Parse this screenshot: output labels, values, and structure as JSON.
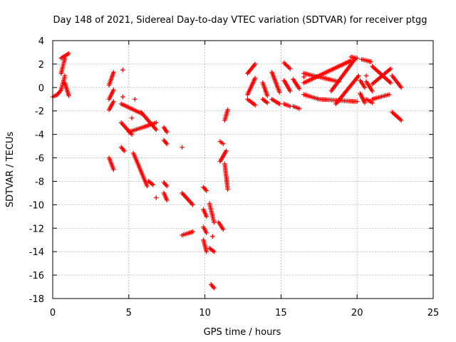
{
  "chart_data": {
    "type": "scatter",
    "title": "Day 148 of 2021, Sidereal Day-to-day VTEC variation (SDTVAR) for receiver ptgg",
    "xlabel": "GPS time / hours",
    "ylabel": "SDTVAR / TECUs",
    "xlim": [
      0,
      25
    ],
    "ylim": [
      -18,
      4
    ],
    "xticks": [
      "0",
      "5",
      "10",
      "15",
      "20",
      "25"
    ],
    "yticks": [
      "4",
      "2",
      "0",
      "-2",
      "-4",
      "-6",
      "-8",
      "-10",
      "-12",
      "-14",
      "-16",
      "-18"
    ],
    "grid": true,
    "marker": "+",
    "color": "#ff0000",
    "segments": [
      {
        "x": [
          0.0,
          0.3
        ],
        "y": [
          -0.8,
          -0.6
        ]
      },
      {
        "x": [
          0.3,
          0.5
        ],
        "y": [
          -0.6,
          -0.3
        ]
      },
      {
        "x": [
          0.55,
          1.05
        ],
        "y": [
          2.5,
          2.9
        ]
      },
      {
        "x": [
          0.55,
          0.8
        ],
        "y": [
          1.2,
          2.5
        ]
      },
      {
        "x": [
          0.55,
          0.8
        ],
        "y": [
          -0.2,
          1.0
        ]
      },
      {
        "x": [
          0.8,
          1.05
        ],
        "y": [
          0.4,
          -0.7
        ]
      },
      {
        "x": [
          3.7,
          4.0
        ],
        "y": [
          0.2,
          1.3
        ]
      },
      {
        "x": [
          3.7,
          4.0
        ],
        "y": [
          -1.0,
          -0.2
        ]
      },
      {
        "x": [
          3.7,
          4.0
        ],
        "y": [
          -1.9,
          -1.2
        ]
      },
      {
        "x": [
          3.7,
          4.0
        ],
        "y": [
          -6.0,
          -7.0
        ]
      },
      {
        "x": [
          4.5,
          5.8
        ],
        "y": [
          -1.4,
          -2.2
        ]
      },
      {
        "x": [
          4.5,
          5.2
        ],
        "y": [
          -3.0,
          -4.0
        ]
      },
      {
        "x": [
          5.0,
          6.8
        ],
        "y": [
          -3.8,
          -3.0
        ]
      },
      {
        "x": [
          5.8,
          6.8
        ],
        "y": [
          -2.1,
          -3.6
        ]
      },
      {
        "x": [
          4.5,
          4.7
        ],
        "y": [
          -5.1,
          -5.4
        ]
      },
      {
        "x": [
          5.3,
          6.2
        ],
        "y": [
          -5.6,
          -8.4
        ]
      },
      {
        "x": [
          6.3,
          6.6
        ],
        "y": [
          -8.0,
          -8.3
        ]
      },
      {
        "x": [
          7.3,
          7.5
        ],
        "y": [
          -3.4,
          -3.8
        ]
      },
      {
        "x": [
          7.3,
          7.5
        ],
        "y": [
          -4.5,
          -4.8
        ]
      },
      {
        "x": [
          7.3,
          7.5
        ],
        "y": [
          -8.1,
          -8.4
        ]
      },
      {
        "x": [
          7.3,
          7.5
        ],
        "y": [
          -9.0,
          -9.6
        ]
      },
      {
        "x": [
          8.5,
          9.2
        ],
        "y": [
          -9.0,
          -10.0
        ]
      },
      {
        "x": [
          8.5,
          9.2
        ],
        "y": [
          -12.6,
          -12.3
        ]
      },
      {
        "x": [
          9.9,
          10.1
        ],
        "y": [
          -8.5,
          -8.8
        ]
      },
      {
        "x": [
          9.9,
          10.1
        ],
        "y": [
          -10.4,
          -11.0
        ]
      },
      {
        "x": [
          9.9,
          10.1
        ],
        "y": [
          -11.9,
          -12.4
        ]
      },
      {
        "x": [
          9.9,
          10.1
        ],
        "y": [
          -13.0,
          -14.0
        ]
      },
      {
        "x": [
          10.3,
          10.6
        ],
        "y": [
          -9.9,
          -11.5
        ]
      },
      {
        "x": [
          10.3,
          10.6
        ],
        "y": [
          -13.7,
          -14.0
        ]
      },
      {
        "x": [
          10.4,
          10.6
        ],
        "y": [
          -16.8,
          -17.1
        ]
      },
      {
        "x": [
          11.0,
          11.2
        ],
        "y": [
          -4.6,
          -4.8
        ]
      },
      {
        "x": [
          11.0,
          11.4
        ],
        "y": [
          -6.3,
          -5.4
        ]
      },
      {
        "x": [
          10.9,
          11.2
        ],
        "y": [
          -11.5,
          -12.1
        ]
      },
      {
        "x": [
          11.3,
          11.5
        ],
        "y": [
          -6.5,
          -8.7
        ]
      },
      {
        "x": [
          11.3,
          11.5
        ],
        "y": [
          -2.8,
          -1.9
        ]
      },
      {
        "x": [
          12.8,
          13.3
        ],
        "y": [
          1.2,
          2.0
        ]
      },
      {
        "x": [
          12.8,
          13.3
        ],
        "y": [
          -0.6,
          0.8
        ]
      },
      {
        "x": [
          12.8,
          13.3
        ],
        "y": [
          -1.0,
          -1.5
        ]
      },
      {
        "x": [
          13.8,
          14.1
        ],
        "y": [
          0.4,
          -0.7
        ]
      },
      {
        "x": [
          13.8,
          14.1
        ],
        "y": [
          -1.0,
          -1.3
        ]
      },
      {
        "x": [
          14.4,
          14.9
        ],
        "y": [
          1.3,
          -0.4
        ]
      },
      {
        "x": [
          14.4,
          14.9
        ],
        "y": [
          -1.0,
          -1.4
        ]
      },
      {
        "x": [
          15.2,
          15.6
        ],
        "y": [
          2.1,
          1.6
        ]
      },
      {
        "x": [
          15.2,
          15.6
        ],
        "y": [
          0.6,
          -0.3
        ]
      },
      {
        "x": [
          15.2,
          15.6
        ],
        "y": [
          -1.4,
          -1.6
        ]
      },
      {
        "x": [
          15.8,
          16.2
        ],
        "y": [
          0.7,
          -0.1
        ]
      },
      {
        "x": [
          15.8,
          16.2
        ],
        "y": [
          -1.6,
          -1.8
        ]
      },
      {
        "x": [
          16.5,
          18.8
        ],
        "y": [
          1.2,
          0.5
        ]
      },
      {
        "x": [
          16.5,
          19.6
        ],
        "y": [
          0.4,
          2.3
        ]
      },
      {
        "x": [
          16.5,
          17.5
        ],
        "y": [
          -0.6,
          -1.0
        ]
      },
      {
        "x": [
          17.5,
          20.0
        ],
        "y": [
          -1.0,
          -1.2
        ]
      },
      {
        "x": [
          18.3,
          19.9
        ],
        "y": [
          -0.3,
          2.5
        ]
      },
      {
        "x": [
          18.6,
          20.1
        ],
        "y": [
          -1.4,
          1.0
        ]
      },
      {
        "x": [
          19.6,
          20.0
        ],
        "y": [
          2.6,
          2.5
        ]
      },
      {
        "x": [
          20.2,
          20.5
        ],
        "y": [
          0.6,
          0.0
        ]
      },
      {
        "x": [
          20.2,
          20.5
        ],
        "y": [
          -0.5,
          -1.3
        ]
      },
      {
        "x": [
          20.3,
          20.9
        ],
        "y": [
          2.4,
          2.2
        ]
      },
      {
        "x": [
          20.6,
          21.0
        ],
        "y": [
          0.5,
          -0.3
        ]
      },
      {
        "x": [
          20.6,
          21.0
        ],
        "y": [
          -1.0,
          -1.3
        ]
      },
      {
        "x": [
          21.0,
          22.2
        ],
        "y": [
          1.8,
          0.4
        ]
      },
      {
        "x": [
          21.0,
          22.2
        ],
        "y": [
          0.3,
          1.6
        ]
      },
      {
        "x": [
          21.0,
          22.1
        ],
        "y": [
          -1.0,
          -0.6
        ]
      },
      {
        "x": [
          22.3,
          22.9
        ],
        "y": [
          1.0,
          0.0
        ]
      },
      {
        "x": [
          22.3,
          22.9
        ],
        "y": [
          -2.1,
          -2.8
        ]
      }
    ],
    "isolated": [
      {
        "x": 4.6,
        "y": 1.5
      },
      {
        "x": 4.6,
        "y": -0.8
      },
      {
        "x": 5.4,
        "y": -1.0
      },
      {
        "x": 5.2,
        "y": -2.6
      },
      {
        "x": 6.8,
        "y": -9.4
      },
      {
        "x": 8.5,
        "y": -5.1
      },
      {
        "x": 10.5,
        "y": -12.7
      },
      {
        "x": 16.5,
        "y": 0.9
      },
      {
        "x": 20.6,
        "y": 1.0
      }
    ]
  }
}
